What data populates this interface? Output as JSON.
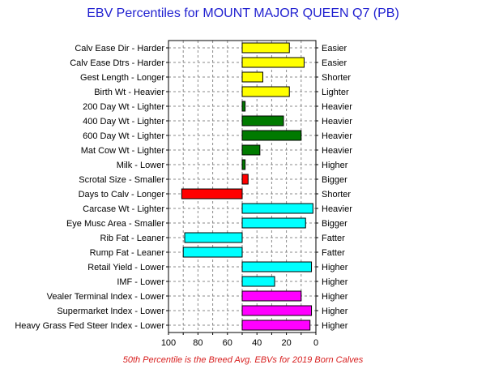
{
  "chart_data": {
    "type": "bar",
    "orientation": "horizontal",
    "title": "EBV Percentiles for MOUNT MAJOR QUEEN Q7 (PB)",
    "footnote": "50th Percentile is the Breed Avg. EBVs for 2019 Born Calves",
    "xlim": [
      100,
      0
    ],
    "x_reversed": true,
    "baseline": 50,
    "xticks": [
      "100",
      "80",
      "60",
      "40",
      "20",
      "0"
    ],
    "grid": true,
    "categories": [
      {
        "left": "Calv Ease Dir - Harder",
        "right": "Easier",
        "value": 18,
        "color": "#ffff00"
      },
      {
        "left": "Calv Ease Dtrs - Harder",
        "right": "Easier",
        "value": 8,
        "color": "#ffff00"
      },
      {
        "left": "Gest Length - Longer",
        "right": "Shorter",
        "value": 36,
        "color": "#ffff00"
      },
      {
        "left": "Birth Wt - Heavier",
        "right": "Lighter",
        "value": 18,
        "color": "#ffff00"
      },
      {
        "left": "200 Day Wt - Lighter",
        "right": "Heavier",
        "value": 48,
        "color": "#007a00"
      },
      {
        "left": "400 Day Wt - Lighter",
        "right": "Heavier",
        "value": 22,
        "color": "#007a00"
      },
      {
        "left": "600 Day Wt - Lighter",
        "right": "Heavier",
        "value": 10,
        "color": "#007a00"
      },
      {
        "left": "Mat Cow Wt - Lighter",
        "right": "Heavier",
        "value": 38,
        "color": "#007a00"
      },
      {
        "left": "Milk - Lower",
        "right": "Higher",
        "value": 48,
        "color": "#007a00"
      },
      {
        "left": "Scrotal Size - Smaller",
        "right": "Bigger",
        "value": 46,
        "color": "#ff0000"
      },
      {
        "left": "Days to Calv - Longer",
        "right": "Shorter",
        "value": 91,
        "color": "#ff0000"
      },
      {
        "left": "Carcase Wt - Lighter",
        "right": "Heavier",
        "value": 2,
        "color": "#00ffff"
      },
      {
        "left": "Eye Musc Area - Smaller",
        "right": "Bigger",
        "value": 7,
        "color": "#00ffff"
      },
      {
        "left": "Rib Fat - Leaner",
        "right": "Fatter",
        "value": 89,
        "color": "#00ffff"
      },
      {
        "left": "Rump Fat - Leaner",
        "right": "Fatter",
        "value": 90,
        "color": "#00ffff"
      },
      {
        "left": "Retail Yield - Lower",
        "right": "Higher",
        "value": 3,
        "color": "#00ffff"
      },
      {
        "left": "IMF - Lower",
        "right": "Higher",
        "value": 28,
        "color": "#00ffff"
      },
      {
        "left": "Vealer Terminal Index - Lower",
        "right": "Higher",
        "value": 10,
        "color": "#ff00ff"
      },
      {
        "left": "Supermarket Index - Lower",
        "right": "Higher",
        "value": 3,
        "color": "#ff00ff"
      },
      {
        "left": "Heavy Grass Fed Steer Index - Lower",
        "right": "Higher",
        "value": 4,
        "color": "#ff00ff"
      }
    ]
  }
}
